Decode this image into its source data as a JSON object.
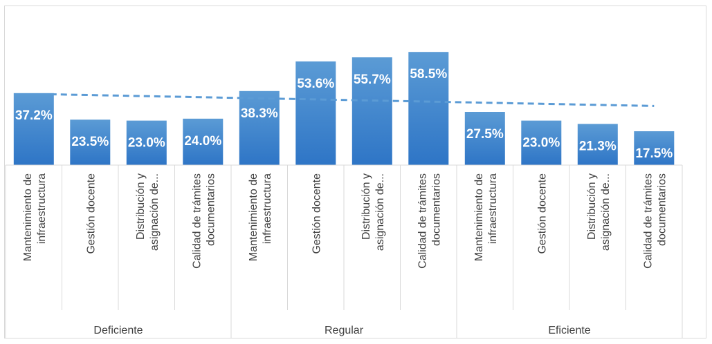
{
  "chart_data": {
    "type": "bar",
    "title": "",
    "xlabel": "",
    "ylabel": "",
    "ylim": [
      0,
      70
    ],
    "grid": false,
    "legend": "none",
    "groups": [
      {
        "name": "Deficiente",
        "categories": [
          [
            "Mantenimiento de",
            "infraestructura"
          ],
          [
            "Gestión docente"
          ],
          [
            "Distribución y",
            "asignación de..."
          ],
          [
            "Calidad de trámites",
            "documentarios"
          ]
        ],
        "values": [
          37.2,
          23.5,
          23.0,
          24.0
        ],
        "labels": [
          "37.2%",
          "23.5%",
          "23.0%",
          "24.0%"
        ]
      },
      {
        "name": "Regular",
        "categories": [
          [
            "Mantenimiento de",
            "infraestructura"
          ],
          [
            "Gestión docente"
          ],
          [
            "Distribución y",
            "asignación de..."
          ],
          [
            "Calidad de trámites",
            "documentarios"
          ]
        ],
        "values": [
          38.3,
          53.6,
          55.7,
          58.5
        ],
        "labels": [
          "38.3%",
          "53.6%",
          "55.7%",
          "58.5%"
        ]
      },
      {
        "name": "Eficiente",
        "categories": [
          [
            "Mantenimiento de",
            "infraestructura"
          ],
          [
            "Gestión docente"
          ],
          [
            "Distribución y",
            "asignación de..."
          ],
          [
            "Calidad de trámites",
            "documentarios"
          ]
        ],
        "values": [
          27.5,
          23.0,
          21.3,
          17.5
        ],
        "labels": [
          "27.5%",
          "23.0%",
          "21.3%",
          "17.5%"
        ]
      }
    ],
    "trendline": {
      "type": "linear",
      "style": "dashed"
    },
    "colors": {
      "bar_top": "#5b9bd5",
      "bar_bottom": "#2e75c6",
      "trend": "#5b9bd5",
      "axis": "#d9d9d9",
      "text": "#404040"
    }
  }
}
